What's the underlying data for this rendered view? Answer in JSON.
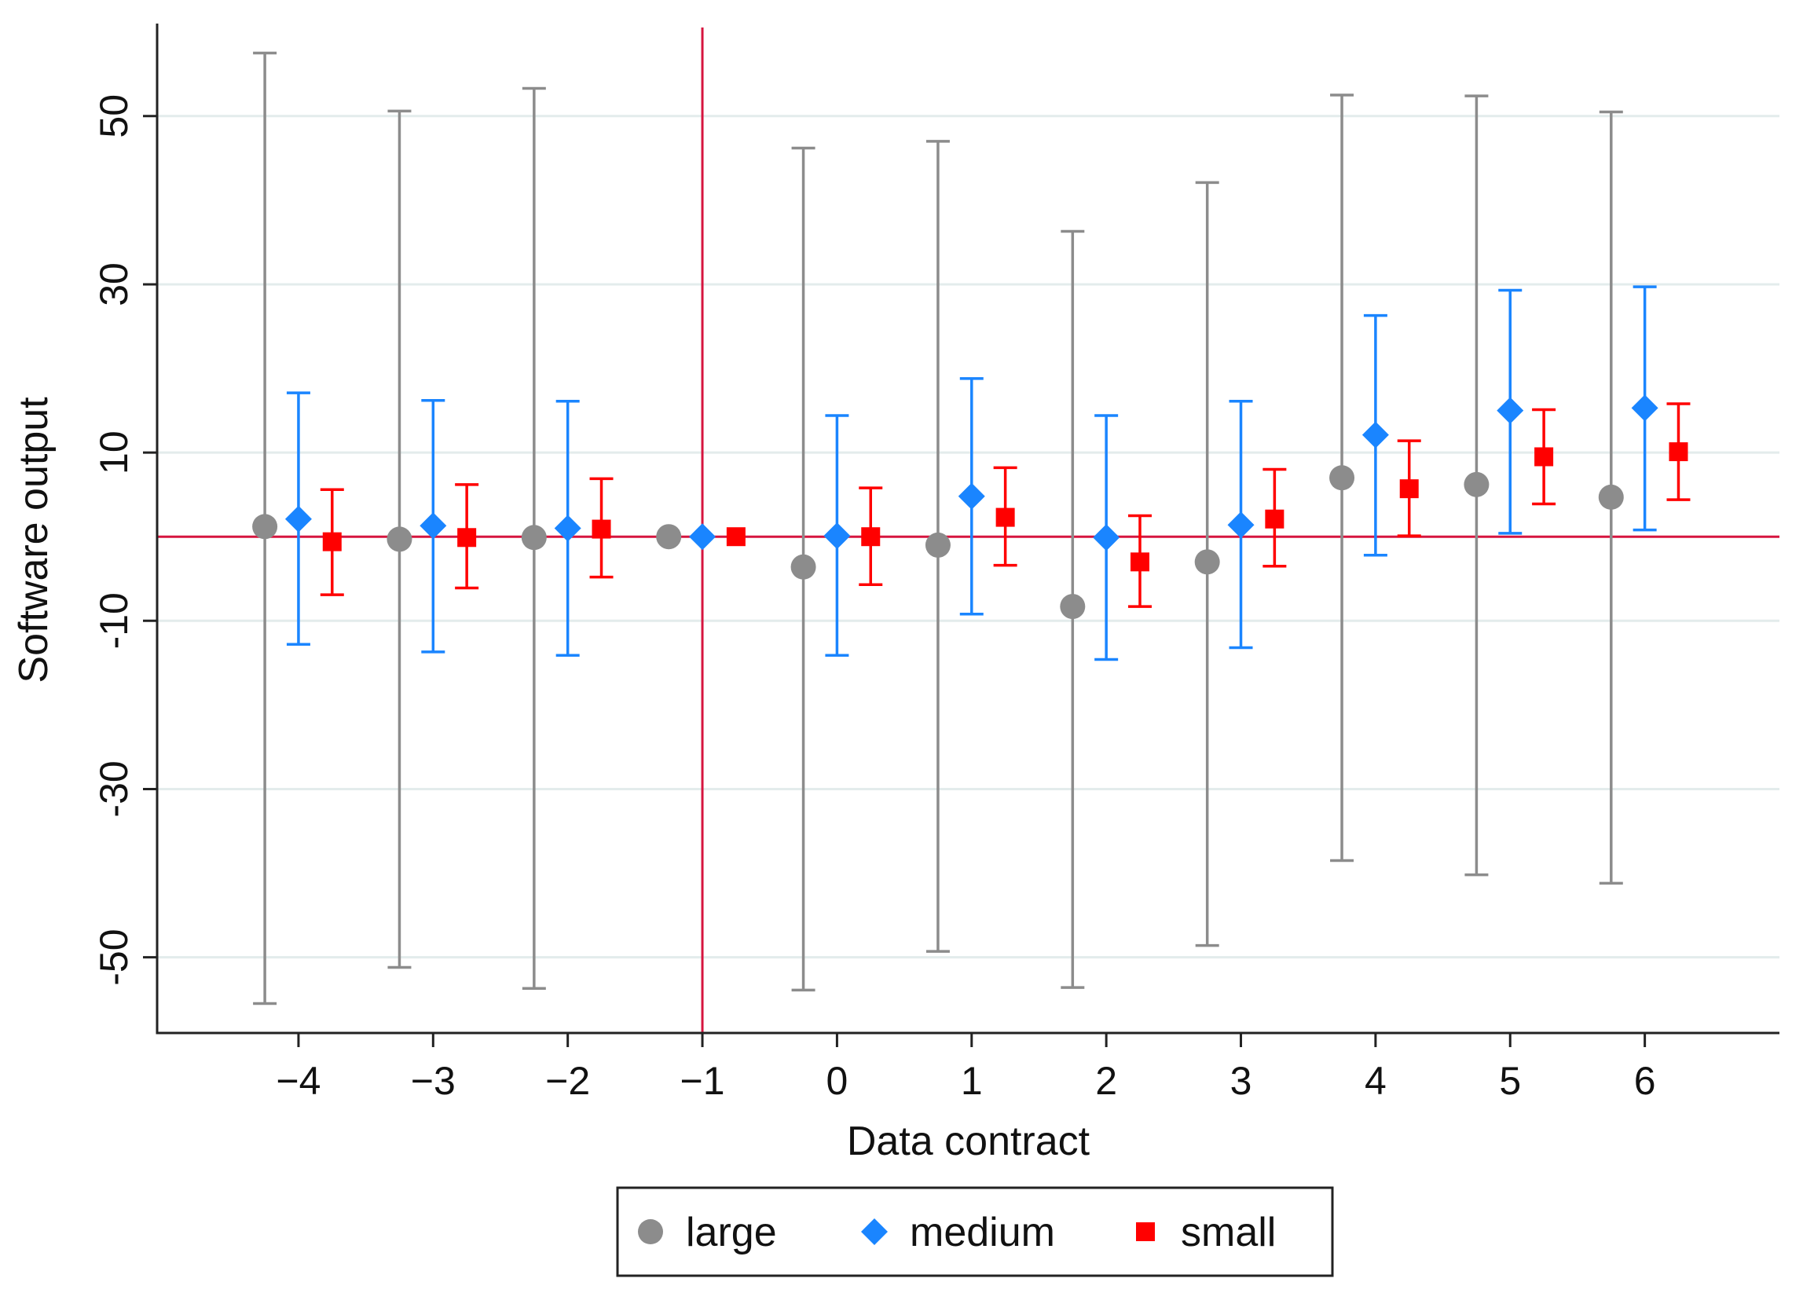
{
  "chart_data": {
    "type": "scatter",
    "subtype": "coefficient-plot-with-confidence-intervals",
    "title": "",
    "xlabel": "Data contract",
    "ylabel": "Software output",
    "xlim": [
      -5.05,
      7.0
    ],
    "ylim": [
      -59,
      61
    ],
    "x_ticks": [
      -4,
      -3,
      -2,
      -1,
      0,
      1,
      2,
      3,
      4,
      5,
      6
    ],
    "x_tick_labels": [
      "−4",
      "−3",
      "−2",
      "−1",
      "0",
      "1",
      "2",
      "3",
      "4",
      "5",
      "6"
    ],
    "y_ticks": [
      50,
      30,
      10,
      -10,
      -30,
      -50
    ],
    "y_tick_labels": [
      "50",
      "30",
      "10",
      "-10",
      "-30",
      "-50"
    ],
    "grid": "horizontal",
    "reference_lines": {
      "y": 0,
      "x": -1,
      "color": "#d6153f"
    },
    "legend_position": "bottom",
    "series": [
      {
        "name": "large",
        "marker": "circle",
        "color": "#8c8c8c",
        "x_offset": -0.25,
        "x": [
          -4,
          -3,
          -2,
          -1,
          0,
          1,
          2,
          3,
          4,
          5,
          6
        ],
        "y": [
          1.2,
          -0.3,
          -0.1,
          0,
          -3.6,
          -1.0,
          -8.3,
          -3.0,
          7.0,
          6.2,
          4.7
        ],
        "ci_low": [
          -55.5,
          -51.2,
          -53.7,
          null,
          -53.9,
          -49.3,
          -53.6,
          -48.6,
          -38.5,
          -40.2,
          -41.2
        ],
        "ci_high": [
          57.5,
          50.6,
          53.3,
          null,
          46.2,
          47.0,
          36.3,
          42.1,
          52.5,
          52.4,
          50.5
        ]
      },
      {
        "name": "medium",
        "marker": "diamond",
        "color": "#1a85ff",
        "x_offset": 0,
        "x": [
          -4,
          -3,
          -2,
          -1,
          0,
          1,
          2,
          3,
          4,
          5,
          6
        ],
        "y": [
          2.1,
          1.3,
          1.0,
          0,
          0.1,
          4.8,
          -0.1,
          1.4,
          12.1,
          15.0,
          15.3
        ],
        "ci_low": [
          -12.8,
          -13.7,
          -14.1,
          null,
          -14.1,
          -9.2,
          -14.6,
          -13.2,
          -2.2,
          0.4,
          0.8
        ],
        "ci_high": [
          17.1,
          16.2,
          16.1,
          null,
          14.4,
          18.8,
          14.4,
          16.1,
          26.3,
          29.3,
          29.7
        ]
      },
      {
        "name": "small",
        "marker": "square",
        "color": "#ff0000",
        "x_offset": 0.25,
        "x": [
          -4,
          -3,
          -2,
          -1,
          0,
          1,
          2,
          3,
          4,
          5,
          6
        ],
        "y": [
          -0.6,
          -0.1,
          0.9,
          0,
          0.0,
          2.3,
          -3.0,
          2.1,
          5.7,
          9.5,
          10.1
        ],
        "ci_low": [
          -6.9,
          -6.1,
          -4.8,
          null,
          -5.7,
          -3.4,
          -8.3,
          -3.5,
          0.1,
          3.9,
          4.4
        ],
        "ci_high": [
          5.6,
          6.2,
          6.9,
          null,
          5.8,
          8.2,
          2.5,
          8.0,
          11.4,
          15.1,
          15.8
        ]
      }
    ]
  }
}
